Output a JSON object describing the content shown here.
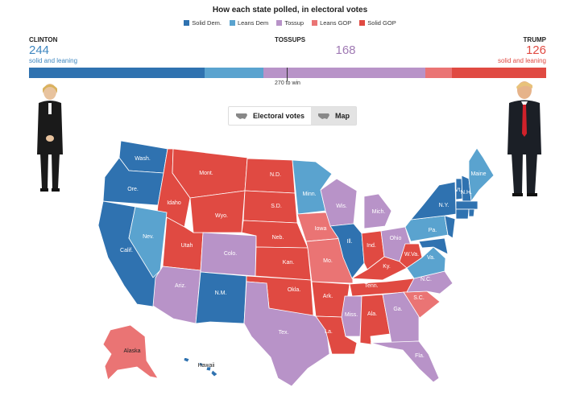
{
  "title": "How each state polled, in electoral votes",
  "legend": [
    {
      "label": "Solid Dem.",
      "color": "#2f72b0"
    },
    {
      "label": "Leans Dem",
      "color": "#5aa3cf"
    },
    {
      "label": "Tossup",
      "color": "#b893c8"
    },
    {
      "label": "Leans GOP",
      "color": "#ea7474"
    },
    {
      "label": "Solid GOP",
      "color": "#e04a42"
    }
  ],
  "clinton": {
    "name": "CLINTON",
    "votes": "244",
    "sub": "solid and leaning",
    "color": "#3f87c0"
  },
  "tossups": {
    "name": "TOSSUPS",
    "votes": "168",
    "color": "#a07ab4"
  },
  "trump": {
    "name": "TRUMP",
    "votes": "126",
    "sub": "solid and leaning",
    "color": "#e04a42"
  },
  "bar": {
    "total": 538,
    "threshold_label": "270 to win",
    "threshold": 270,
    "segments": [
      {
        "category": "Solid Dem.",
        "votes": 183,
        "color": "#2f72b0"
      },
      {
        "category": "Leans Dem",
        "votes": 61,
        "color": "#5aa3cf"
      },
      {
        "category": "Tossup",
        "votes": 168,
        "color": "#b893c8"
      },
      {
        "category": "Leans GOP",
        "votes": 28,
        "color": "#ea7474"
      },
      {
        "category": "Solid GOP",
        "votes": 98,
        "color": "#e04a42"
      }
    ]
  },
  "toggle": {
    "electoral_label": "Electoral votes",
    "map_label": "Map",
    "active": "Map"
  },
  "states": {
    "wash": "Wash.",
    "ore": "Ore.",
    "calif": "Calif.",
    "idaho": "Idaho",
    "nev": "Nev.",
    "utah": "Utah",
    "ariz": "Ariz.",
    "mont": "Mont.",
    "wyo": "Wyo.",
    "colo": "Colo.",
    "nm": "N.M.",
    "nd": "N.D.",
    "sd": "S.D.",
    "neb": "Neb.",
    "kan": "Kan.",
    "okla": "Okla.",
    "tex": "Tex.",
    "minn": "Minn.",
    "iowa": "Iowa",
    "mo": "Mo.",
    "ark": "Ark.",
    "la": "La.",
    "wis": "Wis.",
    "ill": "Ill.",
    "mich": "Mich.",
    "ind": "Ind.",
    "ohio": "Ohio",
    "ky": "Ky.",
    "tenn": "Tenn.",
    "miss": "Miss.",
    "ala": "Ala.",
    "ga": "Ga.",
    "fla": "Fla.",
    "sc": "S.C.",
    "nc": "N.C.",
    "va": "Va.",
    "wv": "W.Va.",
    "pa": "Pa.",
    "ny": "N.Y.",
    "vt": "Vt.",
    "nh": "N.H.",
    "maine": "Maine",
    "alaska": "Alaska",
    "hawaii": "Hawaii"
  }
}
